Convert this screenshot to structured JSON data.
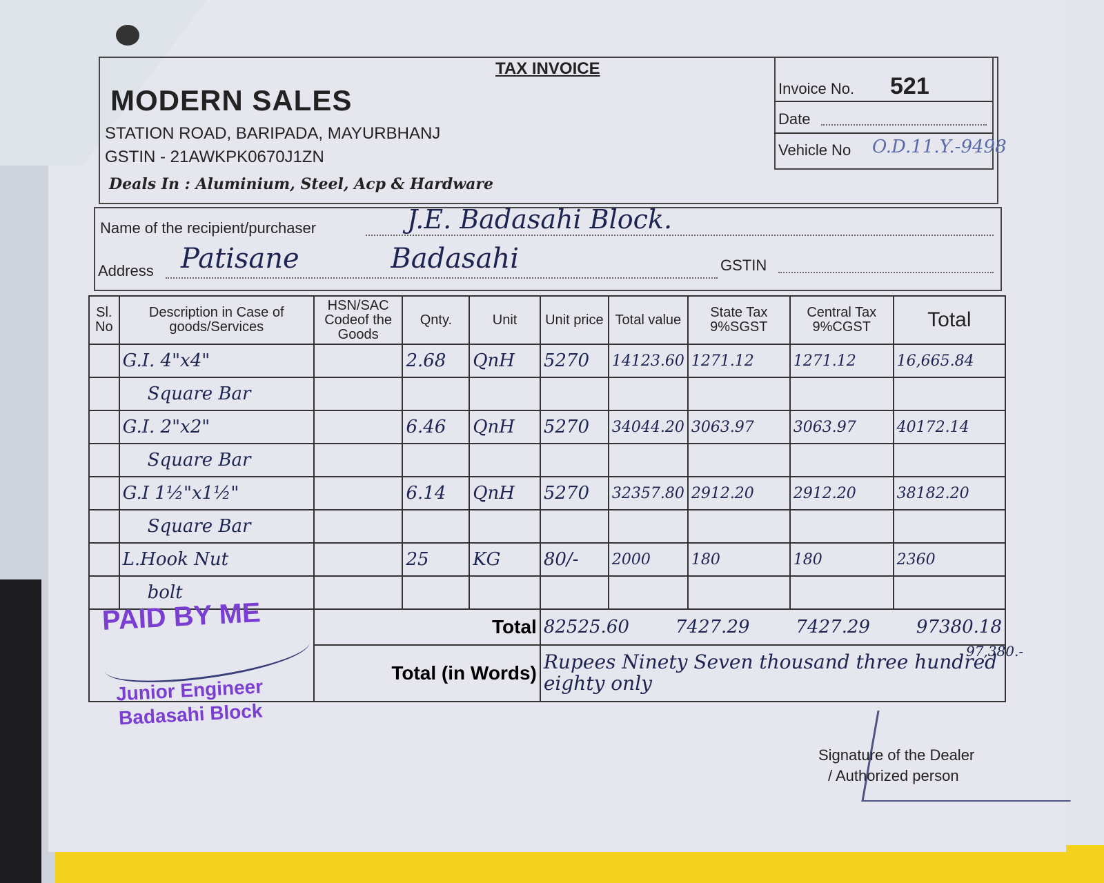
{
  "header": {
    "doc_title": "TAX INVOICE",
    "company": "MODERN SALES",
    "address": "STATION ROAD, BARIPADA, MAYURBHANJ",
    "gstin": "GSTIN - 21AWKPK0670J1ZN",
    "deals_in": "Deals In : Aluminium, Steel, Acp & Hardware"
  },
  "invoice_box": {
    "invoice_no_label": "Invoice No.",
    "invoice_no": "521",
    "date_label": "Date",
    "date": "",
    "vehicle_label": "Vehicle No",
    "vehicle_no": "O.D.11.Y.-9498"
  },
  "recipient": {
    "name_label": "Name of the recipient/purchaser",
    "name": "J.E. Badasahi Block.",
    "address_label": "Address",
    "address": "Patisane Badasahi",
    "gstin_label": "GSTIN",
    "gstin": ""
  },
  "table": {
    "headers": [
      "Sl. No",
      "Description in Case of goods/Services",
      "HSN/SAC Codeof the Goods",
      "Qnty.",
      "Unit",
      "Unit price",
      "Total value",
      "State Tax 9%SGST",
      "Central Tax 9%CGST",
      "Total"
    ],
    "rows": [
      [
        "",
        "G.I. 4\"x4\"",
        "",
        "2.68",
        "QnH",
        "5270",
        "14123.60",
        "1271.12",
        "1271.12",
        "16,665.84"
      ],
      [
        "",
        "Square Bar",
        "",
        "",
        "",
        "",
        "",
        "",
        "",
        ""
      ],
      [
        "",
        "G.I. 2\"x2\"",
        "",
        "6.46",
        "QnH",
        "5270",
        "34044.20",
        "3063.97",
        "3063.97",
        "40172.14"
      ],
      [
        "",
        "Square Bar",
        "",
        "",
        "",
        "",
        "",
        "",
        "",
        ""
      ],
      [
        "",
        "G.I 1½\"x1½\"",
        "",
        "6.14",
        "QnH",
        "5270",
        "32357.80",
        "2912.20",
        "2912.20",
        "38182.20"
      ],
      [
        "",
        "Square Bar",
        "",
        "",
        "",
        "",
        "",
        "",
        "",
        ""
      ],
      [
        "",
        "L.Hook Nut",
        "",
        "25",
        "KG",
        "80/-",
        "2000",
        "180",
        "180",
        "2360"
      ],
      [
        "",
        "bolt",
        "",
        "",
        "",
        "",
        "",
        "",
        "",
        ""
      ]
    ],
    "total_label": "Total",
    "total_value": "82525.60",
    "total_sgst": "7427.29",
    "total_cgst": "7427.29",
    "grand_total": "97380.18",
    "rounded_total": "97,380.-",
    "words_label": "Total (in Words)",
    "words": "Rupees Ninety Seven thousand three hundred eighty only"
  },
  "stamp": {
    "paid": "PAID BY ME",
    "title": "Junior Engineer",
    "office": "Badasahi Block"
  },
  "footer": {
    "signature_label": "Signature of the Dealer",
    "authorized": "/ Authorized person"
  },
  "colors": {
    "stamp": "#7a3fd0",
    "ink": "#1e2452",
    "paper": "#e6e7ee"
  }
}
